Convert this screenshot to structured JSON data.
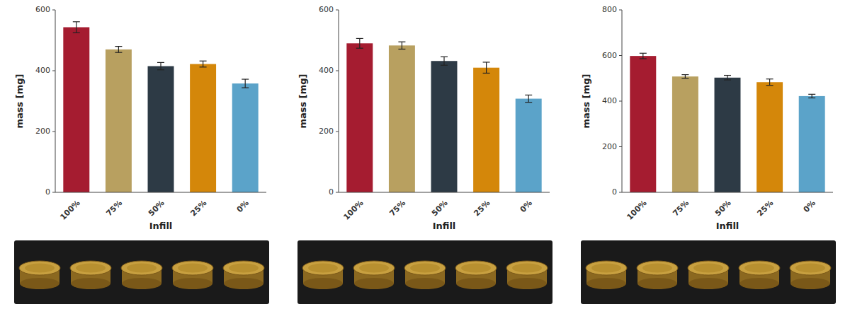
{
  "chart_data": [
    {
      "type": "bar",
      "xlabel": "Infill",
      "ylabel": "mass [mg]",
      "categories": [
        "100%",
        "75%",
        "50%",
        "25%",
        "0%"
      ],
      "values": [
        543,
        470,
        415,
        422,
        358
      ],
      "errors": [
        18,
        10,
        12,
        10,
        14
      ],
      "colors": [
        "#A51C30",
        "#B8A060",
        "#2D3A45",
        "#D4870A",
        "#5BA3C9"
      ],
      "ylim": [
        0,
        600
      ],
      "yticks": [
        0,
        200,
        400,
        600
      ],
      "grid": false
    },
    {
      "type": "bar",
      "xlabel": "Infill",
      "ylabel": "mass [mg]",
      "categories": [
        "100%",
        "75%",
        "50%",
        "25%",
        "0%"
      ],
      "values": [
        490,
        483,
        432,
        410,
        308
      ],
      "errors": [
        16,
        12,
        14,
        18,
        12
      ],
      "colors": [
        "#A51C30",
        "#B8A060",
        "#2D3A45",
        "#D4870A",
        "#5BA3C9"
      ],
      "ylim": [
        0,
        600
      ],
      "yticks": [
        0,
        200,
        400,
        600
      ],
      "grid": false
    },
    {
      "type": "bar",
      "xlabel": "Infill",
      "ylabel": "mass [mg]",
      "categories": [
        "100%",
        "75%",
        "50%",
        "25%",
        "0%"
      ],
      "values": [
        598,
        508,
        503,
        483,
        422
      ],
      "errors": [
        12,
        8,
        10,
        14,
        8
      ],
      "colors": [
        "#A51C30",
        "#B8A060",
        "#2D3A45",
        "#D4870A",
        "#5BA3C9"
      ],
      "ylim": [
        0,
        800
      ],
      "yticks": [
        0,
        200,
        400,
        600,
        800
      ],
      "grid": false
    }
  ]
}
